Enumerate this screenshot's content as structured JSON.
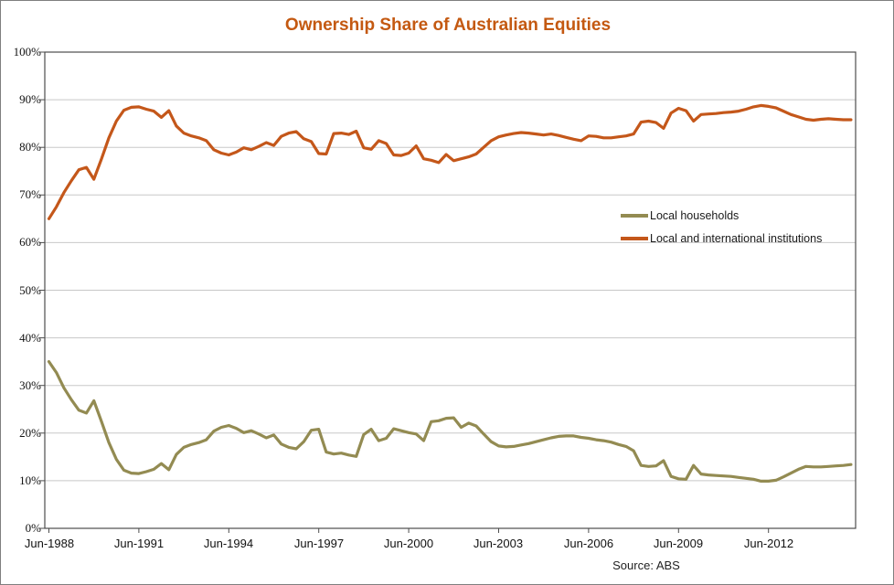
{
  "title": "Ownership Share of Australian Equities",
  "source_note": "Source: ABS",
  "colors": {
    "title": "#C45911",
    "households_line": "#938B52",
    "institutions_line": "#C4571A",
    "gridline": "#c8c8c8",
    "axis": "#4d4d4d",
    "frame_border": "#7f7f7f"
  },
  "chart_data": {
    "type": "line",
    "title": "Ownership Share of Australian Equities",
    "xlabel": "",
    "ylabel": "",
    "x_unit": "quarterly from Jun-1988 to Mar-2015",
    "ylim": [
      0,
      100
    ],
    "grid": "horizontal",
    "legend_position": "middle-right",
    "y_tick_labels": [
      "100%",
      "90%",
      "80%",
      "70%",
      "60%",
      "50%",
      "40%",
      "30%",
      "20%",
      "10%",
      "0%"
    ],
    "x_tick_labels": [
      "Jun-1988",
      "Jun-1991",
      "Jun-1994",
      "Jun-1997",
      "Jun-2000",
      "Jun-2003",
      "Jun-2006",
      "Jun-2009",
      "Jun-2012"
    ],
    "x_tick_quarter_indices": [
      0,
      12,
      24,
      36,
      48,
      60,
      72,
      84,
      96
    ],
    "series": [
      {
        "name": "Local households",
        "color": "#938B52",
        "values": [
          35.0,
          32.7,
          29.5,
          27.0,
          24.8,
          24.2,
          26.8,
          22.5,
          18.0,
          14.5,
          12.2,
          11.6,
          11.5,
          11.9,
          12.4,
          13.6,
          12.3,
          15.5,
          17.0,
          17.6,
          18.0,
          18.6,
          20.4,
          21.2,
          21.6,
          21.0,
          20.1,
          20.5,
          19.8,
          19.0,
          19.6,
          17.7,
          17.0,
          16.7,
          18.2,
          20.6,
          20.8,
          16.0,
          15.6,
          15.8,
          15.4,
          15.1,
          19.7,
          20.8,
          18.4,
          18.9,
          20.9,
          20.5,
          20.1,
          19.8,
          18.4,
          22.4,
          22.6,
          23.1,
          23.2,
          21.2,
          22.1,
          21.5,
          19.8,
          18.2,
          17.3,
          17.1,
          17.2,
          17.5,
          17.8,
          18.2,
          18.6,
          19.0,
          19.3,
          19.4,
          19.4,
          19.1,
          18.9,
          18.6,
          18.4,
          18.1,
          17.6,
          17.2,
          16.3,
          13.2,
          13.0,
          13.1,
          14.2,
          10.9,
          10.4,
          10.3,
          13.2,
          11.4,
          11.2,
          11.1,
          11.0,
          10.9,
          10.7,
          10.5,
          10.3,
          9.9,
          9.9,
          10.1,
          10.8,
          11.6,
          12.4,
          13.0,
          12.9,
          12.9,
          13.0,
          13.1,
          13.2,
          13.4
        ]
      },
      {
        "name": "Local and international institutions",
        "color": "#C4571A",
        "values": [
          65.0,
          67.5,
          70.5,
          73.0,
          75.3,
          75.8,
          73.3,
          77.5,
          82.0,
          85.5,
          87.8,
          88.4,
          88.5,
          88.0,
          87.6,
          86.3,
          87.7,
          84.5,
          83.0,
          82.4,
          82.0,
          81.4,
          79.5,
          78.8,
          78.4,
          79.0,
          79.9,
          79.5,
          80.2,
          81.0,
          80.4,
          82.3,
          83.0,
          83.3,
          81.8,
          81.2,
          78.7,
          78.6,
          82.9,
          83.0,
          82.7,
          83.4,
          79.9,
          79.6,
          81.4,
          80.8,
          78.4,
          78.3,
          78.8,
          80.3,
          77.6,
          77.3,
          76.8,
          78.5,
          77.2,
          77.6,
          78.0,
          78.6,
          80.0,
          81.4,
          82.2,
          82.6,
          82.9,
          83.1,
          83.0,
          82.8,
          82.6,
          82.8,
          82.5,
          82.1,
          81.7,
          81.4,
          82.4,
          82.3,
          82.0,
          82.0,
          82.2,
          82.4,
          82.8,
          85.3,
          85.5,
          85.2,
          84.0,
          87.2,
          88.2,
          87.7,
          85.5,
          86.9,
          87.0,
          87.1,
          87.3,
          87.4,
          87.6,
          88.0,
          88.5,
          88.8,
          88.6,
          88.3,
          87.6,
          86.9,
          86.4,
          85.9,
          85.7,
          85.9,
          86.0,
          85.9,
          85.8,
          85.8
        ]
      }
    ]
  }
}
